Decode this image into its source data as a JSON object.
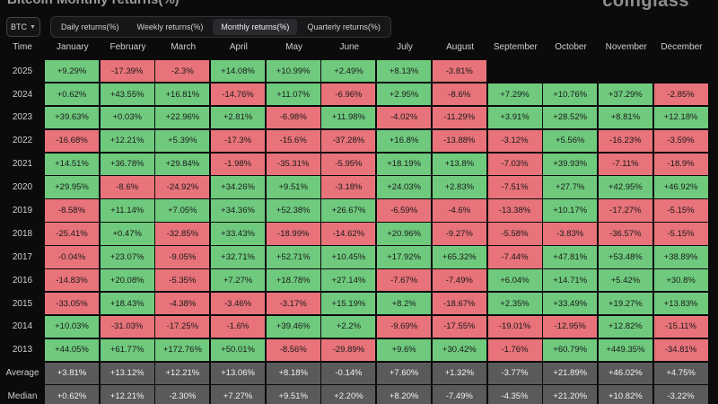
{
  "page": {
    "title": "Bitcoin Monthly returns(%)",
    "brand": "coinglass"
  },
  "controls": {
    "asset": "BTC",
    "tabs": [
      {
        "label": "Daily returns(%)",
        "active": false
      },
      {
        "label": "Weekly returns(%)",
        "active": false
      },
      {
        "label": "Monthly returns(%)",
        "active": true
      },
      {
        "label": "Quarterly returns(%)",
        "active": false
      }
    ]
  },
  "table": {
    "time_header": "Time",
    "months": [
      "January",
      "February",
      "March",
      "April",
      "May",
      "June",
      "July",
      "August",
      "September",
      "October",
      "November",
      "December"
    ],
    "rows": [
      {
        "year": "2025",
        "values": [
          "+9.29%",
          "-17.39%",
          "-2.3%",
          "+14.08%",
          "+10.99%",
          "+2.49%",
          "+8.13%",
          "-3.81%",
          "",
          "",
          "",
          ""
        ]
      },
      {
        "year": "2024",
        "values": [
          "+0.62%",
          "+43.55%",
          "+16.81%",
          "-14.76%",
          "+11.07%",
          "-6.96%",
          "+2.95%",
          "-8.6%",
          "+7.29%",
          "+10.76%",
          "+37.29%",
          "-2.85%"
        ]
      },
      {
        "year": "2023",
        "values": [
          "+39.63%",
          "+0.03%",
          "+22.96%",
          "+2.81%",
          "-6.98%",
          "+11.98%",
          "-4.02%",
          "-11.29%",
          "+3.91%",
          "+28.52%",
          "+8.81%",
          "+12.18%"
        ]
      },
      {
        "year": "2022",
        "values": [
          "-16.68%",
          "+12.21%",
          "+5.39%",
          "-17.3%",
          "-15.6%",
          "-37.28%",
          "+16.8%",
          "-13.88%",
          "-3.12%",
          "+5.56%",
          "-16.23%",
          "-3.59%"
        ]
      },
      {
        "year": "2021",
        "values": [
          "+14.51%",
          "+36.78%",
          "+29.84%",
          "-1.98%",
          "-35.31%",
          "-5.95%",
          "+18.19%",
          "+13.8%",
          "-7.03%",
          "+39.93%",
          "-7.11%",
          "-18.9%"
        ]
      },
      {
        "year": "2020",
        "values": [
          "+29.95%",
          "-8.6%",
          "-24.92%",
          "+34.26%",
          "+9.51%",
          "-3.18%",
          "+24.03%",
          "+2.83%",
          "-7.51%",
          "+27.7%",
          "+42.95%",
          "+46.92%"
        ]
      },
      {
        "year": "2019",
        "values": [
          "-8.58%",
          "+11.14%",
          "+7.05%",
          "+34.36%",
          "+52.38%",
          "+26.67%",
          "-6.59%",
          "-4.6%",
          "-13.38%",
          "+10.17%",
          "-17.27%",
          "-5.15%"
        ]
      },
      {
        "year": "2018",
        "values": [
          "-25.41%",
          "+0.47%",
          "-32.85%",
          "+33.43%",
          "-18.99%",
          "-14.62%",
          "+20.96%",
          "-9.27%",
          "-5.58%",
          "-3.83%",
          "-36.57%",
          "-5.15%"
        ]
      },
      {
        "year": "2017",
        "values": [
          "-0.04%",
          "+23.07%",
          "-9.05%",
          "+32.71%",
          "+52.71%",
          "+10.45%",
          "+17.92%",
          "+65.32%",
          "-7.44%",
          "+47.81%",
          "+53.48%",
          "+38.89%"
        ]
      },
      {
        "year": "2016",
        "values": [
          "-14.83%",
          "+20.08%",
          "-5.35%",
          "+7.27%",
          "+18.78%",
          "+27.14%",
          "-7.67%",
          "-7.49%",
          "+6.04%",
          "+14.71%",
          "+5.42%",
          "+30.8%"
        ]
      },
      {
        "year": "2015",
        "values": [
          "-33.05%",
          "+18.43%",
          "-4.38%",
          "-3.46%",
          "-3.17%",
          "+15.19%",
          "+8.2%",
          "-18.67%",
          "+2.35%",
          "+33.49%",
          "+19.27%",
          "+13.83%"
        ]
      },
      {
        "year": "2014",
        "values": [
          "+10.03%",
          "-31.03%",
          "-17.25%",
          "-1.6%",
          "+39.46%",
          "+2.2%",
          "-9.69%",
          "-17.55%",
          "-19.01%",
          "-12.95%",
          "+12.82%",
          "-15.11%"
        ]
      },
      {
        "year": "2013",
        "values": [
          "+44.05%",
          "+61.77%",
          "+172.76%",
          "+50.01%",
          "-8.56%",
          "-29.89%",
          "+9.6%",
          "+30.42%",
          "-1.76%",
          "+60.79%",
          "+449.35%",
          "-34.81%"
        ]
      }
    ],
    "summary": [
      {
        "label": "Average",
        "values": [
          "+3.81%",
          "+13.12%",
          "+12.21%",
          "+13.06%",
          "+8.18%",
          "-0.14%",
          "+7.60%",
          "+1.32%",
          "-3.77%",
          "+21.89%",
          "+46.02%",
          "+4.75%"
        ]
      },
      {
        "label": "Median",
        "values": [
          "+0.62%",
          "+12.21%",
          "-2.30%",
          "+7.27%",
          "+9.51%",
          "+2.20%",
          "+8.20%",
          "-7.49%",
          "-4.35%",
          "+21.20%",
          "+10.82%",
          "-3.22%"
        ]
      }
    ]
  },
  "colors": {
    "positive": "#6fca7e",
    "negative": "#e8737a",
    "summary": "#5a5a5c"
  }
}
